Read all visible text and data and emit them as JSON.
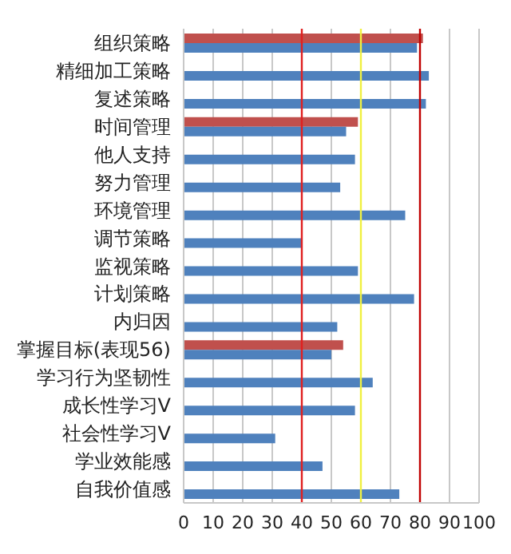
{
  "chart_data": {
    "type": "bar",
    "orientation": "horizontal",
    "categories": [
      "组织策略",
      "精细加工策略",
      "复述策略",
      "时间管理",
      "他人支持",
      "努力管理",
      "环境管理",
      "调节策略",
      "监视策略",
      "计划策略",
      "内归因",
      "掌握目标(表现56)",
      "学习行为坚韧性",
      "成长性学习V",
      "社会性学习V",
      "学业效能感",
      "自我价值感"
    ],
    "series": [
      {
        "color": "#c0504d",
        "values": [
          81,
          null,
          null,
          59,
          null,
          null,
          null,
          null,
          null,
          null,
          null,
          54,
          null,
          null,
          null,
          null,
          null
        ]
      },
      {
        "color": "#4f81bd",
        "values": [
          79,
          83,
          82,
          55,
          58,
          53,
          75,
          40,
          59,
          78,
          52,
          50,
          64,
          58,
          31,
          47,
          73
        ]
      }
    ],
    "xlim": [
      0,
      100
    ],
    "xticks": [
      0,
      10,
      20,
      30,
      40,
      50,
      60,
      70,
      80,
      90,
      100
    ],
    "grid": "x",
    "ref_lines": [
      {
        "axis": "x",
        "value": 40,
        "color": "#e02020"
      },
      {
        "axis": "x",
        "value": 60,
        "color": "#f0f040"
      },
      {
        "axis": "x",
        "value": 80,
        "color": "#c00000"
      }
    ]
  }
}
